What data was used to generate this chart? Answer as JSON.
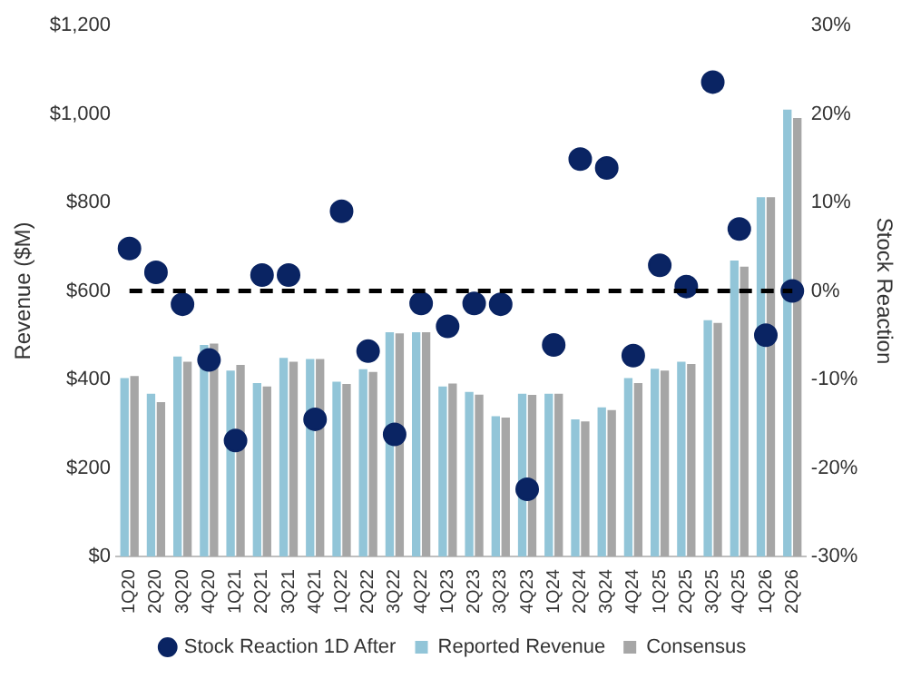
{
  "chart_data": {
    "type": "bar",
    "ylabel": "Revenue ($M)",
    "y2label": "Stock Reaction",
    "categories": [
      "1Q20",
      "2Q20",
      "3Q20",
      "4Q20",
      "1Q21",
      "2Q21",
      "3Q21",
      "4Q21",
      "1Q22",
      "2Q22",
      "3Q22",
      "4Q22",
      "1Q23",
      "2Q23",
      "3Q23",
      "4Q23",
      "1Q24",
      "2Q24",
      "3Q24",
      "4Q24",
      "1Q25",
      "2Q25",
      "3Q25",
      "4Q25",
      "1Q26",
      "2Q26"
    ],
    "series": [
      {
        "name": "Reported Revenue",
        "color": "#92c5d8",
        "values": [
          403,
          368,
          452,
          478,
          420,
          392,
          449,
          446,
          395,
          423,
          507,
          507,
          384,
          372,
          317,
          368,
          368,
          310,
          337,
          403,
          424,
          440,
          534,
          669,
          812,
          1010
        ]
      },
      {
        "name": "Consensus",
        "color": "#a6a6a6",
        "values": [
          408,
          349,
          440,
          481,
          433,
          384,
          440,
          446,
          390,
          417,
          504,
          507,
          391,
          366,
          314,
          365,
          368,
          305,
          331,
          392,
          420,
          435,
          528,
          655,
          812,
          991
        ]
      },
      {
        "name": "Stock Reaction 1D After",
        "type": "scatter",
        "axis": "y2",
        "color": "#0a2463",
        "values": [
          4.8,
          2.1,
          -1.5,
          -7.8,
          -16.9,
          1.8,
          1.8,
          -14.5,
          9.0,
          -6.8,
          -16.2,
          -1.4,
          -4.0,
          -1.4,
          -1.5,
          -22.4,
          -6.1,
          14.9,
          13.9,
          -7.3,
          2.9,
          0.5,
          23.6,
          7.0,
          -5.0,
          0.0
        ]
      }
    ],
    "ylim": [
      0,
      1200
    ],
    "yticks": [
      {
        "value": 0,
        "label": "$0"
      },
      {
        "value": 200,
        "label": "$200"
      },
      {
        "value": 400,
        "label": "$400"
      },
      {
        "value": 600,
        "label": "$600"
      },
      {
        "value": 800,
        "label": "$800"
      },
      {
        "value": 1000,
        "label": "$1,000"
      },
      {
        "value": 1200,
        "label": "$1,200"
      }
    ],
    "y2lim": [
      -30,
      30
    ],
    "y2ticks": [
      {
        "value": -30,
        "label": "-30%"
      },
      {
        "value": -20,
        "label": "-20%"
      },
      {
        "value": -10,
        "label": "-10%"
      },
      {
        "value": 0,
        "label": "0%"
      },
      {
        "value": 10,
        "label": "10%"
      },
      {
        "value": 20,
        "label": "20%"
      },
      {
        "value": 30,
        "label": "30%"
      }
    ],
    "ref_lines": [
      {
        "axis": "y2",
        "value": 0,
        "color": "#000000",
        "line_style": "dashed"
      }
    ],
    "grid": false,
    "legend": "bottom",
    "marker": "circle"
  }
}
